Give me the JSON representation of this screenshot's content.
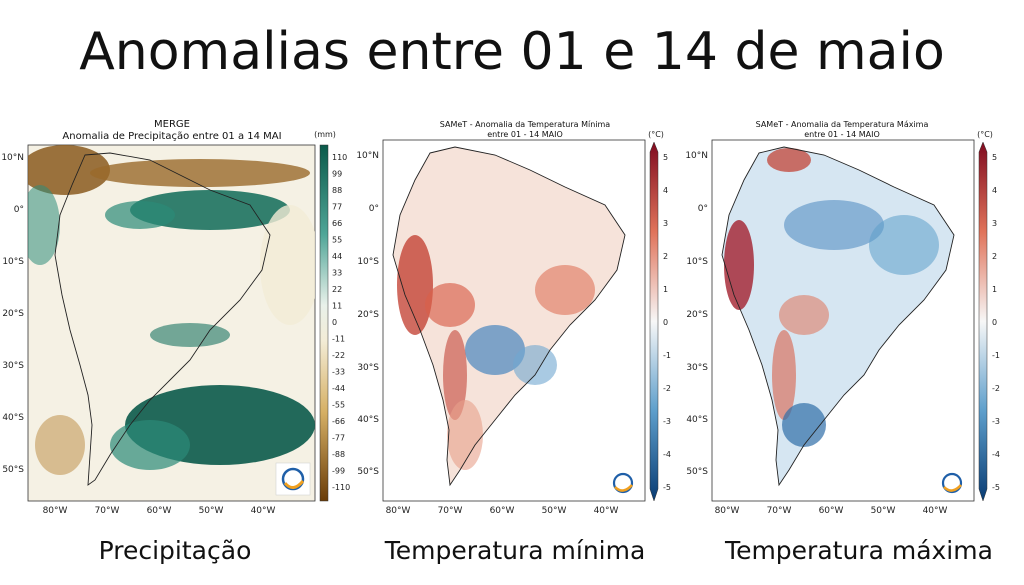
{
  "slide": {
    "title": "Anomalias entre 01 e 14 de maio"
  },
  "panels": [
    {
      "id": "precip",
      "title_line1": "MERGE",
      "title_line2": "Anomalia de Precipitação entre 01 a 14 MAI",
      "unit": "(mm)",
      "caption": "Precipitação",
      "lat_labels": [
        "10°N",
        "0°",
        "10°S",
        "20°S",
        "30°S",
        "40°S",
        "50°S"
      ],
      "lon_labels": [
        "80°W",
        "70°W",
        "60°W",
        "50°W",
        "40°W"
      ],
      "colorbar_ticks": [
        "110",
        "99",
        "88",
        "77",
        "66",
        "55",
        "44",
        "33",
        "22",
        "11",
        "0",
        "-11",
        "-22",
        "-33",
        "-44",
        "-55",
        "-66",
        "-77",
        "-88",
        "-99",
        "-110"
      ],
      "colors": {
        "high": "#0b5a4a",
        "mid": "#f5f1e4",
        "low": "#7a4a10"
      }
    },
    {
      "id": "tmin",
      "title_line1": "SAMeT - Anomalia da Temperatura Mínima",
      "title_line2": "entre 01 - 14 MAIO",
      "unit": "(°C)",
      "caption": "Temperatura mínima",
      "lat_labels": [
        "10°N",
        "0°",
        "10°S",
        "20°S",
        "30°S",
        "40°S",
        "50°S"
      ],
      "lon_labels": [
        "80°W",
        "70°W",
        "60°W",
        "50°W",
        "40°W"
      ],
      "colorbar_ticks": [
        "5",
        "4",
        "3",
        "2",
        "1",
        "0",
        "-1",
        "-2",
        "-3",
        "-4",
        "-5"
      ],
      "colors": {
        "high": "#7f0a1f",
        "mid": "#f7f7f7",
        "low": "#083b73"
      }
    },
    {
      "id": "tmax",
      "title_line1": "SAMeT - Anomalia da Temperatura Máxima",
      "title_line2": "entre 01 - 14 MAIO",
      "unit": "(°C)",
      "caption": "Temperatura máxima",
      "lat_labels": [
        "10°N",
        "0°",
        "10°S",
        "20°S",
        "30°S",
        "40°S",
        "50°S"
      ],
      "lon_labels": [
        "80°W",
        "70°W",
        "60°W",
        "50°W",
        "40°W"
      ],
      "colorbar_ticks": [
        "5",
        "4",
        "3",
        "2",
        "1",
        "0",
        "-1",
        "-2",
        "-3",
        "-4",
        "-5"
      ],
      "colors": {
        "high": "#7f0a1f",
        "mid": "#f7f7f7",
        "low": "#083b73"
      }
    }
  ]
}
